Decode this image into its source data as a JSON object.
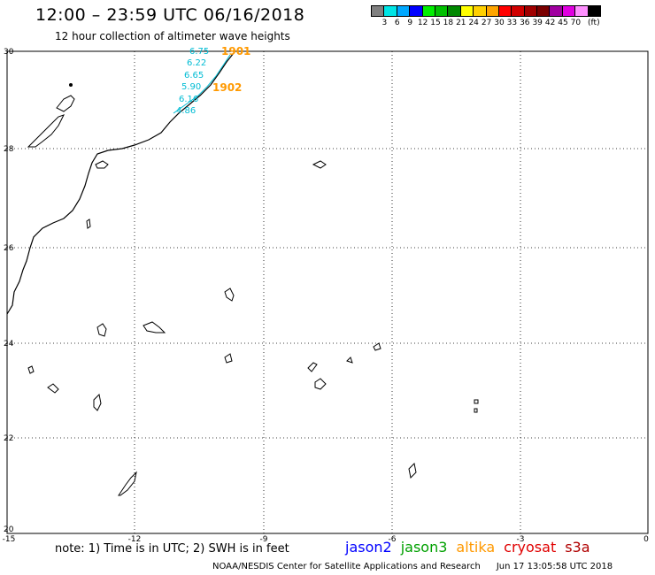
{
  "header": {
    "title": "12:00 – 23:59 UTC 06/16/2018",
    "subtitle": "12 hour collection of altimeter wave heights"
  },
  "legend": {
    "colors": [
      "#808080",
      "#00e5e5",
      "#00a8ff",
      "#0000ff",
      "#00ee00",
      "#00c000",
      "#008800",
      "#ffff00",
      "#ffd000",
      "#ffa500",
      "#ff0000",
      "#d00000",
      "#a00000",
      "#7a0000",
      "#a000a0",
      "#e000e0",
      "#ff90ff",
      "#000000"
    ],
    "labels": [
      "3",
      "6",
      "9",
      "12",
      "15",
      "18",
      "21",
      "24",
      "27",
      "30",
      "33",
      "36",
      "39",
      "42",
      "45",
      "70",
      "(ft)"
    ]
  },
  "axes": {
    "lat_labels": [
      "30",
      "28",
      "26",
      "24",
      "22",
      "20"
    ],
    "lon_labels": [
      "-15",
      "-12",
      "-9",
      "-6",
      "-3",
      "0"
    ]
  },
  "observations": {
    "wave_heights": [
      "6.75",
      "6.22",
      "6.65",
      "5.90",
      "6.16",
      "4.86"
    ],
    "wave_color": "#00bcd4",
    "times": [
      "1901",
      "1902"
    ],
    "time_color": "#ff9900"
  },
  "footer": {
    "note": "note: 1) Time is in UTC; 2) SWH is in feet",
    "satellites": [
      {
        "name": "jason2",
        "color": "#0000ff"
      },
      {
        "name": "jason3",
        "color": "#00a000"
      },
      {
        "name": "altika",
        "color": "#ff9900"
      },
      {
        "name": "cryosat",
        "color": "#e00000"
      },
      {
        "name": "s3a",
        "color": "#b00000"
      }
    ],
    "credit": "NOAA/NESDIS Center for Satellite Applications and Research",
    "timestamp": "Jun 17 13:05:58 UTC 2018"
  }
}
